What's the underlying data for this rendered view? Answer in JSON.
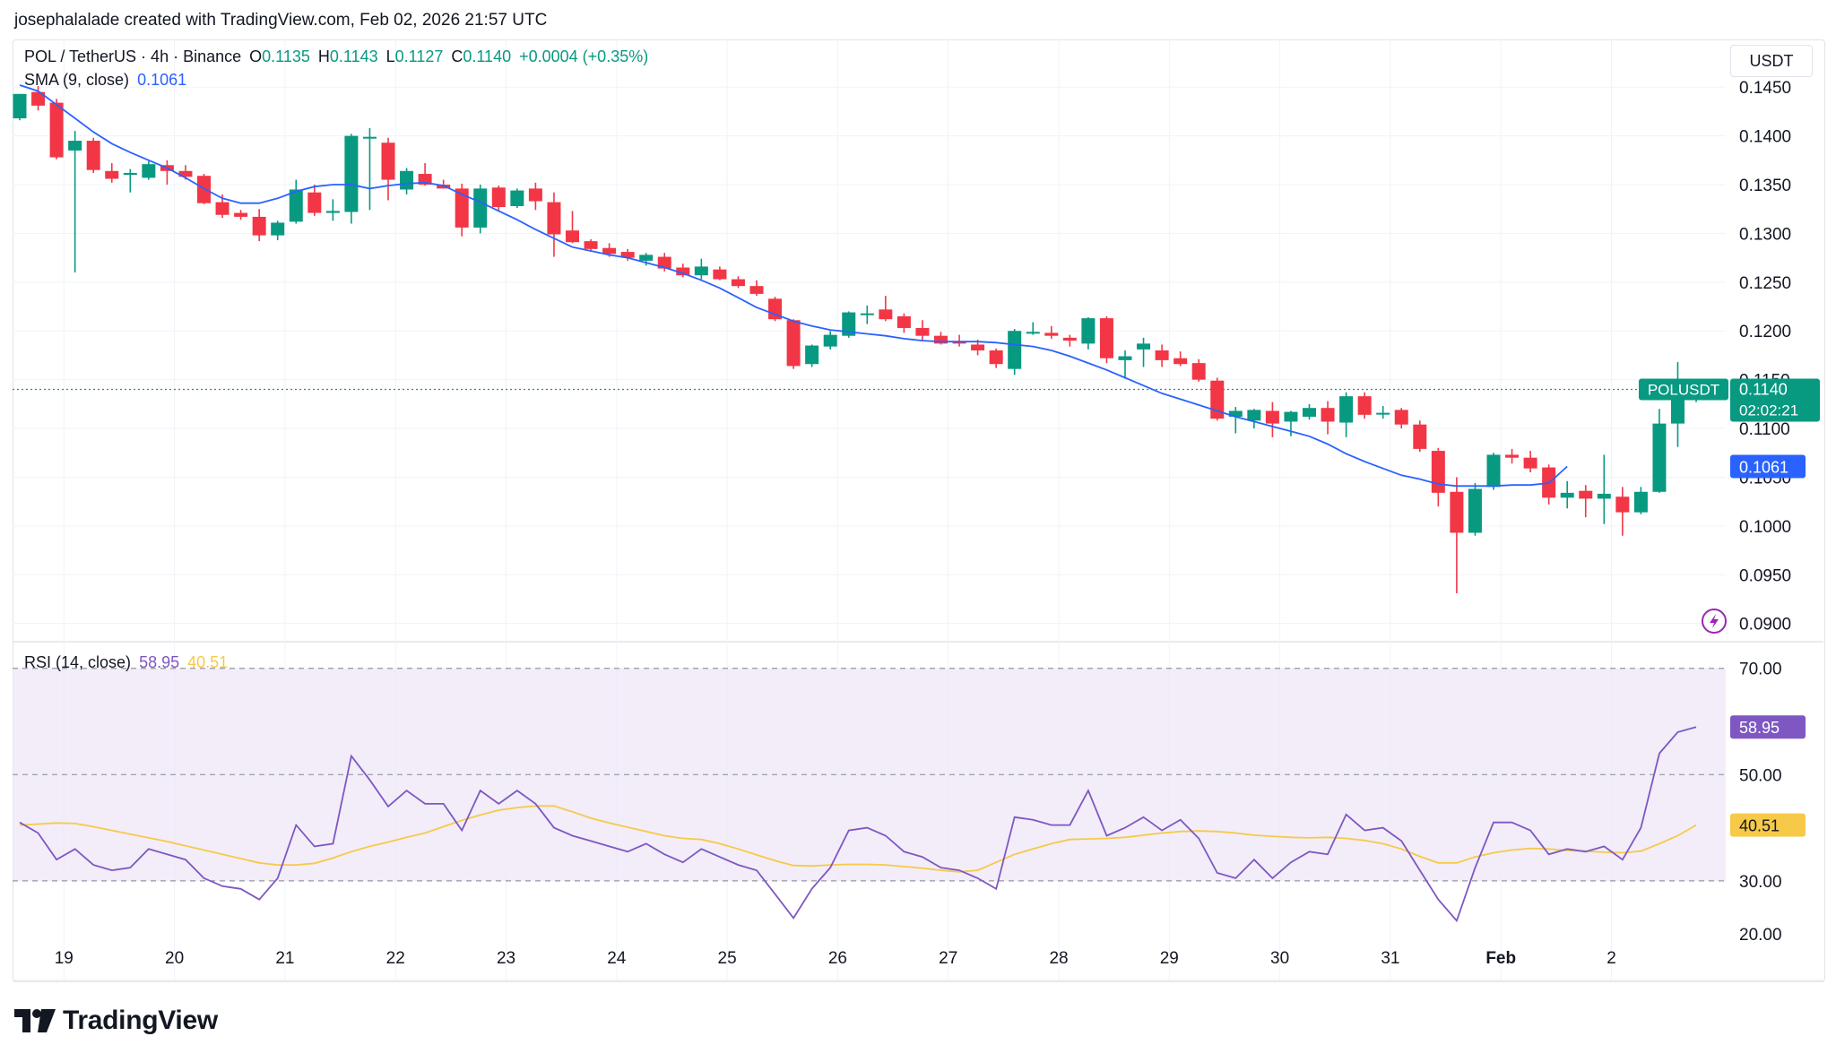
{
  "credit": "josephalalade created with TradingView.com, Feb 02, 2026 21:57 UTC",
  "main_legend": {
    "symbol": "POL / TetherUS · 4h · Binance",
    "o_key": "O",
    "o_val": "0.1135",
    "h_key": "H",
    "h_val": "0.1143",
    "l_key": "L",
    "l_val": "0.1127",
    "c_key": "C",
    "c_val": "0.1140",
    "change": "+0.0004 (+0.35%)"
  },
  "sma_legend": {
    "label": "SMA (9, close)",
    "value": "0.1061"
  },
  "rsi_legend": {
    "label": "RSI (14, close)",
    "value": "58.95",
    "ma_value": "40.51"
  },
  "currency": "USDT",
  "logo_text": "TradingView",
  "colors": {
    "up": "#089981",
    "down": "#f23645",
    "sma": "#2962ff",
    "rsi": "#7e57c2",
    "rsi_ma": "#f7c948",
    "band_fill": "#ede7f6"
  },
  "price_tag": {
    "symbol": "POLUSDT",
    "price": "0.1140",
    "countdown": "02:02:21"
  },
  "sma_tag": "0.1061",
  "rsi_tag": "58.95",
  "rsi_ma_tag": "40.51",
  "chart_data": [
    {
      "type": "candlestick",
      "title": "POL / TetherUS · 4h · Binance",
      "y_unit": "USDT",
      "x_ticks": [
        "19",
        "20",
        "21",
        "22",
        "23",
        "24",
        "25",
        "26",
        "27",
        "28",
        "29",
        "30",
        "31",
        "Feb",
        "2"
      ],
      "y_ticks": [
        "0.0900",
        "0.0950",
        "0.1000",
        "0.1050",
        "0.1100",
        "0.1150",
        "0.1200",
        "0.1250",
        "0.1300",
        "0.1350",
        "0.1400",
        "0.1450"
      ],
      "ylim": [
        0.0885,
        0.1475
      ],
      "candles": [
        [
          0.1418,
          0.1443,
          0.1416,
          0.1443
        ],
        [
          0.1445,
          0.1451,
          0.1426,
          0.1431
        ],
        [
          0.1434,
          0.1438,
          0.1376,
          0.1378
        ],
        [
          0.1385,
          0.1405,
          0.126,
          0.1395
        ],
        [
          0.1395,
          0.1398,
          0.1362,
          0.1365
        ],
        [
          0.1364,
          0.1372,
          0.1352,
          0.1356
        ],
        [
          0.136,
          0.1366,
          0.1342,
          0.1362
        ],
        [
          0.1357,
          0.1374,
          0.1355,
          0.1371
        ],
        [
          0.137,
          0.1375,
          0.135,
          0.1364
        ],
        [
          0.1364,
          0.137,
          0.1355,
          0.1358
        ],
        [
          0.1359,
          0.1361,
          0.133,
          0.1331
        ],
        [
          0.1332,
          0.134,
          0.1316,
          0.1319
        ],
        [
          0.1321,
          0.1324,
          0.1314,
          0.1317
        ],
        [
          0.1317,
          0.1325,
          0.1292,
          0.1298
        ],
        [
          0.1298,
          0.1313,
          0.1293,
          0.1311
        ],
        [
          0.1312,
          0.1355,
          0.131,
          0.1345
        ],
        [
          0.1342,
          0.135,
          0.1318,
          0.1321
        ],
        [
          0.1321,
          0.1335,
          0.1313,
          0.1323
        ],
        [
          0.1322,
          0.1402,
          0.131,
          0.14
        ],
        [
          0.1399,
          0.1408,
          0.1324,
          0.1399
        ],
        [
          0.1393,
          0.1398,
          0.1334,
          0.1355
        ],
        [
          0.1345,
          0.1367,
          0.134,
          0.1364
        ],
        [
          0.1361,
          0.1372,
          0.1349,
          0.135
        ],
        [
          0.135,
          0.1355,
          0.1346,
          0.1346
        ],
        [
          0.1346,
          0.1351,
          0.1297,
          0.1306
        ],
        [
          0.1306,
          0.135,
          0.13,
          0.1346
        ],
        [
          0.1347,
          0.1349,
          0.1323,
          0.1327
        ],
        [
          0.1328,
          0.1346,
          0.1326,
          0.1344
        ],
        [
          0.1346,
          0.1352,
          0.1324,
          0.1333
        ],
        [
          0.1332,
          0.1342,
          0.1276,
          0.1299
        ],
        [
          0.1303,
          0.1323,
          0.129,
          0.1291
        ],
        [
          0.1292,
          0.1294,
          0.1281,
          0.1284
        ],
        [
          0.1285,
          0.129,
          0.1276,
          0.1279
        ],
        [
          0.1281,
          0.1284,
          0.1272,
          0.1275
        ],
        [
          0.1272,
          0.128,
          0.1267,
          0.1278
        ],
        [
          0.1276,
          0.128,
          0.1261,
          0.1264
        ],
        [
          0.1265,
          0.1269,
          0.1255,
          0.1257
        ],
        [
          0.1257,
          0.1274,
          0.1253,
          0.1266
        ],
        [
          0.1263,
          0.1266,
          0.1252,
          0.1253
        ],
        [
          0.1253,
          0.1256,
          0.1244,
          0.1246
        ],
        [
          0.1246,
          0.1252,
          0.1236,
          0.1238
        ],
        [
          0.1233,
          0.1235,
          0.121,
          0.1212
        ],
        [
          0.1211,
          0.1212,
          0.1161,
          0.1164
        ],
        [
          0.1166,
          0.1186,
          0.1163,
          0.1185
        ],
        [
          0.1184,
          0.12,
          0.1181,
          0.1196
        ],
        [
          0.1195,
          0.122,
          0.1193,
          0.1219
        ],
        [
          0.1217,
          0.1226,
          0.1207,
          0.1218
        ],
        [
          0.1222,
          0.1236,
          0.121,
          0.1212
        ],
        [
          0.1215,
          0.1218,
          0.1198,
          0.1203
        ],
        [
          0.1203,
          0.1211,
          0.119,
          0.1195
        ],
        [
          0.1195,
          0.1199,
          0.1186,
          0.1187
        ],
        [
          0.1189,
          0.1196,
          0.1184,
          0.1187
        ],
        [
          0.1186,
          0.1191,
          0.1175,
          0.118
        ],
        [
          0.118,
          0.1182,
          0.1162,
          0.1166
        ],
        [
          0.1161,
          0.1202,
          0.1155,
          0.12
        ],
        [
          0.1199,
          0.1209,
          0.1196,
          0.1199
        ],
        [
          0.1198,
          0.1205,
          0.1192,
          0.1195
        ],
        [
          0.1193,
          0.1196,
          0.1184,
          0.119
        ],
        [
          0.1187,
          0.1214,
          0.1181,
          0.1213
        ],
        [
          0.1213,
          0.1215,
          0.1167,
          0.1172
        ],
        [
          0.117,
          0.118,
          0.1151,
          0.1174
        ],
        [
          0.1181,
          0.1193,
          0.1163,
          0.1187
        ],
        [
          0.118,
          0.1186,
          0.1163,
          0.117
        ],
        [
          0.1172,
          0.1179,
          0.1164,
          0.1166
        ],
        [
          0.1167,
          0.1171,
          0.1148,
          0.115
        ],
        [
          0.1149,
          0.1152,
          0.1108,
          0.111
        ],
        [
          0.1112,
          0.1122,
          0.1095,
          0.1118
        ],
        [
          0.1108,
          0.112,
          0.11,
          0.1119
        ],
        [
          0.1118,
          0.1127,
          0.1091,
          0.1105
        ],
        [
          0.1107,
          0.1118,
          0.1092,
          0.1117
        ],
        [
          0.1112,
          0.1125,
          0.1109,
          0.1121
        ],
        [
          0.1121,
          0.1128,
          0.1094,
          0.1107
        ],
        [
          0.1106,
          0.1137,
          0.1091,
          0.1133
        ],
        [
          0.1133,
          0.1137,
          0.111,
          0.1114
        ],
        [
          0.1116,
          0.1123,
          0.111,
          0.1116
        ],
        [
          0.1119,
          0.1121,
          0.11,
          0.1104
        ],
        [
          0.1104,
          0.1108,
          0.1076,
          0.1079
        ],
        [
          0.1077,
          0.108,
          0.102,
          0.1034
        ],
        [
          0.1035,
          0.105,
          0.0931,
          0.0993
        ],
        [
          0.0993,
          0.1044,
          0.099,
          0.1038
        ],
        [
          0.104,
          0.1075,
          0.1037,
          0.1073
        ],
        [
          0.1073,
          0.1079,
          0.1064,
          0.107
        ],
        [
          0.107,
          0.1077,
          0.1055,
          0.1059
        ],
        [
          0.106,
          0.1063,
          0.1022,
          0.1029
        ],
        [
          0.1029,
          0.1046,
          0.1018,
          0.1034
        ],
        [
          0.1036,
          0.1042,
          0.1009,
          0.1028
        ],
        [
          0.1028,
          0.1073,
          0.1002,
          0.1033
        ],
        [
          0.103,
          0.104,
          0.099,
          0.1014
        ],
        [
          0.1014,
          0.104,
          0.1012,
          0.1035
        ],
        [
          0.1035,
          0.112,
          0.1034,
          0.1105
        ],
        [
          0.1105,
          0.1168,
          0.1081,
          0.1135
        ],
        [
          0.1135,
          0.1143,
          0.1127,
          0.114
        ]
      ],
      "sma": {
        "name": "SMA (9, close)",
        "values": [
          0.1452,
          0.1446,
          0.1432,
          0.1418,
          0.1404,
          0.1392,
          0.1383,
          0.1375,
          0.1367,
          0.1357,
          0.1346,
          0.1336,
          0.1331,
          0.1331,
          0.1336,
          0.1343,
          0.1348,
          0.135,
          0.135,
          0.1346,
          0.1349,
          0.1351,
          0.1352,
          0.1349,
          0.134,
          0.1332,
          0.1323,
          0.1314,
          0.1304,
          0.1295,
          0.1286,
          0.1282,
          0.1278,
          0.1275,
          0.127,
          0.1265,
          0.1259,
          0.1252,
          0.1244,
          0.1234,
          0.1224,
          0.1217,
          0.121,
          0.1205,
          0.1201,
          0.1199,
          0.1197,
          0.1195,
          0.1192,
          0.119,
          0.1189,
          0.1189,
          0.1189,
          0.1188,
          0.1186,
          0.1184,
          0.118,
          0.1174,
          0.1167,
          0.116,
          0.1152,
          0.1144,
          0.1136,
          0.113,
          0.1124,
          0.1118,
          0.1112,
          0.1107,
          0.1102,
          0.1097,
          0.1092,
          0.1084,
          0.1074,
          0.1066,
          0.1059,
          0.1052,
          0.1048,
          0.1043,
          0.1041,
          0.1041,
          0.1041,
          0.1042,
          0.1042,
          0.1044,
          0.1061
        ]
      },
      "last_price": 0.114
    },
    {
      "type": "line",
      "title": "RSI (14, close)",
      "y_ticks": [
        "20.00",
        "30.00",
        "50.00",
        "70.00"
      ],
      "ylim": [
        17,
        74
      ],
      "band": [
        30,
        70
      ],
      "midline": 50,
      "series": [
        {
          "name": "RSI (14, close)",
          "values": [
            41,
            39,
            34,
            36,
            33,
            32,
            32.5,
            36,
            35,
            34,
            30.5,
            29,
            28.5,
            26.5,
            30.5,
            40.5,
            36.5,
            37,
            53.5,
            49,
            44,
            47,
            44.5,
            44.5,
            39.5,
            47,
            44.5,
            47,
            44.5,
            40,
            38.5,
            37.5,
            36.5,
            35.5,
            37,
            35,
            33.5,
            36,
            34.5,
            33,
            32,
            27.5,
            23,
            28.5,
            32.5,
            39.5,
            40,
            38.5,
            35.5,
            34.5,
            32.5,
            32,
            30.5,
            28.5,
            42,
            41.5,
            40.5,
            40.5,
            47,
            38.5,
            40,
            42,
            39.5,
            41.5,
            38,
            31.5,
            30.5,
            34,
            30.5,
            33.5,
            35.5,
            35,
            42.5,
            39.5,
            40,
            37.5,
            32,
            26.5,
            22.5,
            32.5,
            41,
            41,
            39.5,
            35,
            36,
            35.5,
            36.5,
            34,
            40,
            54,
            58,
            58.95
          ]
        },
        {
          "name": "RSI MA",
          "values": [
            40.5,
            40.7,
            40.9,
            40.8,
            40.2,
            39.5,
            38.8,
            38.1,
            37.4,
            36.6,
            35.8,
            35.0,
            34.2,
            33.4,
            33.0,
            33.0,
            33.3,
            34.3,
            35.5,
            36.5,
            37.3,
            38.2,
            39.0,
            40.2,
            41.4,
            42.4,
            43.3,
            43.8,
            44.1,
            44.1,
            43.0,
            41.8,
            40.9,
            40.1,
            39.3,
            38.5,
            38.0,
            37.8,
            37.0,
            36.0,
            34.9,
            33.8,
            32.9,
            32.8,
            33.0,
            33.1,
            33.1,
            33.0,
            32.7,
            32.4,
            32.0,
            31.7,
            32.0,
            33.5,
            35.0,
            36.0,
            37.0,
            37.8,
            37.9,
            38.0,
            38.2,
            38.6,
            39.0,
            39.3,
            39.4,
            39.3,
            39.0,
            38.6,
            38.4,
            38.2,
            38.1,
            38.2,
            38.0,
            37.6,
            37.0,
            36.0,
            34.6,
            33.4,
            33.4,
            34.5,
            35.3,
            35.8,
            36.1,
            36.0,
            35.7,
            35.6,
            35.4,
            35.3,
            35.6,
            37.0,
            38.5,
            40.51
          ]
        }
      ]
    }
  ]
}
